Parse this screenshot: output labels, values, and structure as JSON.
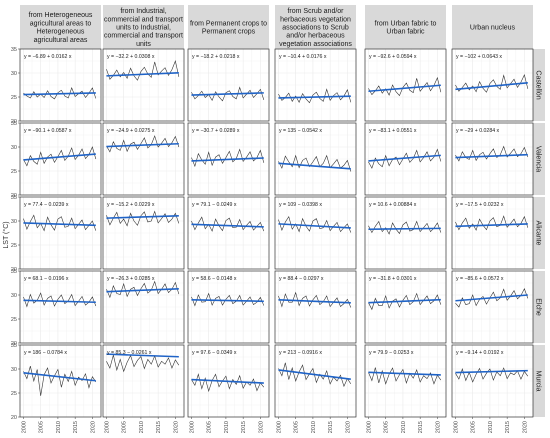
{
  "chart_data": {
    "type": "line",
    "ylabel": "LST (°C)",
    "xlabel": "",
    "ylim": [
      20,
      35
    ],
    "xlim": [
      1999,
      2022.5
    ],
    "y_ticks": [
      20,
      25,
      30,
      35
    ],
    "x_ticks": [
      2000,
      2005,
      2010,
      2015,
      2020
    ],
    "grid": true,
    "columns": [
      "from Heterogeneous agricultural areas to Heterogeneous agricultural areas",
      "from Industrial, commercial and transport units to Industrial, commercial and transport units",
      "from Permanent crops to Permanent crops",
      "from Scrub and/or herbaceous vegetation associations to Scrub and/or herbaceous vegetation associations",
      "from Urban fabric to Urban fabric",
      "Urban nucleus"
    ],
    "column_header_lines": [
      [
        "from Heterogeneous",
        "agricultural areas to",
        "Heterogeneous",
        "agricultural areas"
      ],
      [
        "from Industrial,",
        "commercial and transport",
        "units to Industrial,",
        "commercial and transport",
        "units"
      ],
      [
        "from Permanent crops to",
        "Permanent crops"
      ],
      [
        "from Scrub and/or",
        "herbaceous vegetation",
        "associations to Scrub",
        "and/or herbaceous",
        "vegetation associations"
      ],
      [
        "from Urban fabric to",
        "Urban fabric"
      ],
      [
        "Urban nucleus"
      ]
    ],
    "rows": [
      "Castellón",
      "Valencia",
      "Alicante",
      "Elche",
      "Murcia"
    ],
    "years": [
      2000,
      2001,
      2002,
      2003,
      2004,
      2005,
      2006,
      2007,
      2008,
      2009,
      2010,
      2011,
      2012,
      2013,
      2014,
      2015,
      2016,
      2017,
      2018,
      2019,
      2020,
      2021
    ],
    "panels": [
      [
        {
          "equation": "y = −6.89 + 0.0162 x",
          "intercept": -6.89,
          "slope": 0.0162,
          "values": [
            25.8,
            25.2,
            24.8,
            26.1,
            25.0,
            25.6,
            24.9,
            26.3,
            25.1,
            24.6,
            25.9,
            26.4,
            25.2,
            24.8,
            26.9,
            25.1,
            25.7,
            26.2,
            24.9,
            25.8,
            26.9,
            24.7
          ]
        },
        {
          "equation": "y = −32.2 + 0.0308 x",
          "intercept": -32.2,
          "slope": 0.0308,
          "values": [
            30.8,
            28.7,
            29.5,
            30.6,
            29.2,
            30.1,
            28.9,
            31.0,
            29.4,
            28.5,
            30.3,
            31.2,
            29.8,
            29.1,
            32.3,
            29.6,
            30.4,
            31.1,
            29.5,
            30.7,
            32.5,
            29.2
          ]
        },
        {
          "equation": "y = −18.2 + 0.0218 x",
          "intercept": -18.2,
          "slope": 0.0218,
          "values": [
            26.0,
            24.6,
            25.3,
            26.2,
            24.9,
            25.5,
            24.3,
            26.1,
            25.0,
            24.2,
            25.9,
            26.3,
            25.1,
            24.6,
            27.0,
            24.8,
            25.6,
            26.4,
            24.9,
            25.7,
            26.6,
            24.4
          ]
        },
        {
          "equation": "y = −10.4 + 0.0176 x",
          "intercept": -10.4,
          "slope": 0.0176,
          "values": [
            25.6,
            24.3,
            24.9,
            25.8,
            24.1,
            25.2,
            23.9,
            25.7,
            24.6,
            23.8,
            25.4,
            26.0,
            24.7,
            24.1,
            26.6,
            24.3,
            25.3,
            25.9,
            24.4,
            25.2,
            26.5,
            23.9
          ]
        },
        {
          "equation": "y = −92.6 + 0.0594 x",
          "intercept": -92.6,
          "slope": 0.0594,
          "values": [
            26.8,
            25.5,
            26.3,
            27.3,
            25.8,
            26.7,
            25.4,
            27.5,
            26.1,
            25.3,
            27.0,
            27.9,
            26.4,
            25.9,
            28.9,
            26.2,
            27.1,
            28.0,
            26.3,
            27.4,
            29.0,
            26.0
          ]
        },
        {
          "equation": "y = −102 + 0.0643 x",
          "intercept": -102,
          "slope": 0.0643,
          "values": [
            27.5,
            26.2,
            27.0,
            27.9,
            26.5,
            27.3,
            26.1,
            28.2,
            26.8,
            26.0,
            27.8,
            28.6,
            27.2,
            26.6,
            29.5,
            26.9,
            27.8,
            28.7,
            27.0,
            28.1,
            29.6,
            26.7
          ]
        }
      ],
      [
        {
          "equation": "y = −90.1 + 0.0587 x",
          "intercept": -90.1,
          "slope": 0.0587,
          "values": [
            27.4,
            26.1,
            28.2,
            27.0,
            26.4,
            28.9,
            26.6,
            27.9,
            28.5,
            26.8,
            28.0,
            29.3,
            27.2,
            28.1,
            29.8,
            27.4,
            28.3,
            29.6,
            27.6,
            28.4,
            30.0,
            27.5
          ]
        },
        {
          "equation": "y = −24.9 + 0.0275 x",
          "intercept": -24.9,
          "slope": 0.0275,
          "values": [
            30.2,
            29.0,
            31.1,
            29.7,
            29.3,
            31.4,
            29.1,
            30.6,
            31.0,
            29.5,
            30.7,
            31.9,
            29.8,
            30.5,
            32.3,
            30.0,
            30.8,
            31.8,
            30.1,
            30.9,
            32.2,
            30.0
          ]
        },
        {
          "equation": "y = −30.7 + 0.0289 x",
          "intercept": -30.7,
          "slope": 0.0289,
          "values": [
            27.8,
            26.0,
            28.6,
            27.3,
            26.4,
            28.9,
            26.2,
            27.9,
            28.4,
            26.6,
            27.8,
            29.1,
            26.9,
            27.6,
            29.5,
            27.0,
            27.9,
            29.0,
            27.1,
            27.8,
            29.3,
            26.7
          ]
        },
        {
          "equation": "y = 135 − 0.0542 x",
          "intercept": 135,
          "slope": -0.0542,
          "values": [
            27.0,
            25.6,
            28.1,
            26.9,
            25.9,
            28.2,
            25.7,
            27.2,
            27.7,
            25.9,
            26.9,
            28.0,
            25.9,
            26.6,
            28.2,
            25.7,
            26.5,
            27.4,
            25.6,
            26.2,
            27.2,
            24.9
          ]
        },
        {
          "equation": "y = −83.1 + 0.0551 x",
          "intercept": -83.1,
          "slope": 0.0551,
          "values": [
            26.9,
            25.6,
            27.7,
            26.5,
            25.9,
            28.2,
            26.1,
            27.4,
            27.9,
            26.3,
            27.5,
            28.7,
            26.8,
            27.6,
            29.3,
            26.9,
            27.8,
            29.0,
            27.1,
            27.9,
            29.5,
            27.0
          ]
        },
        {
          "equation": "y = −29 + 0.0284 x",
          "intercept": -29,
          "slope": 0.0284,
          "values": [
            28.3,
            27.1,
            29.0,
            27.8,
            27.4,
            29.3,
            27.2,
            28.4,
            28.9,
            27.5,
            28.6,
            29.6,
            27.8,
            28.4,
            30.1,
            27.9,
            28.7,
            29.6,
            28.0,
            28.6,
            29.9,
            27.9
          ]
        }
      ],
      [
        {
          "equation": "y = 77.4 − 0.0239 x",
          "intercept": 77.4,
          "slope": -0.0239,
          "values": [
            30.5,
            28.3,
            29.9,
            31.2,
            28.6,
            29.5,
            28.0,
            30.8,
            29.2,
            28.1,
            30.4,
            30.9,
            28.7,
            28.9,
            30.6,
            28.4,
            29.3,
            30.2,
            28.2,
            29.1,
            30.0,
            28.0
          ]
        },
        {
          "equation": "y = −15.2 + 0.0229 x",
          "intercept": -15.2,
          "slope": 0.0229,
          "values": [
            31.2,
            29.2,
            30.6,
            31.8,
            29.5,
            30.4,
            29.0,
            31.6,
            30.0,
            29.1,
            31.1,
            31.9,
            29.8,
            30.0,
            32.0,
            29.6,
            30.5,
            31.5,
            29.7,
            30.4,
            31.6,
            29.5
          ]
        },
        {
          "equation": "y = 79.1 − 0.0249 x",
          "intercept": 79.1,
          "slope": -0.0249,
          "values": [
            30.0,
            28.2,
            29.6,
            30.8,
            28.4,
            29.3,
            27.9,
            30.4,
            29.0,
            28.0,
            30.1,
            30.6,
            28.6,
            28.7,
            30.3,
            28.2,
            29.1,
            29.9,
            28.1,
            28.9,
            29.7,
            27.9
          ]
        },
        {
          "equation": "y = 109 − 0.0398 x",
          "intercept": 109,
          "slope": -0.0398,
          "values": [
            30.3,
            28.1,
            29.8,
            30.9,
            28.3,
            29.4,
            27.8,
            30.5,
            28.9,
            27.9,
            30.0,
            30.5,
            28.4,
            28.6,
            30.1,
            28.0,
            28.9,
            29.7,
            27.8,
            28.6,
            29.4,
            27.6
          ]
        },
        {
          "equation": "y = 10.6 + 0.00884 x",
          "intercept": 10.6,
          "slope": 0.00884,
          "values": [
            29.0,
            27.6,
            28.9,
            29.9,
            27.8,
            28.6,
            27.3,
            29.6,
            28.3,
            27.4,
            29.2,
            29.8,
            27.9,
            28.2,
            29.9,
            27.8,
            28.6,
            29.5,
            27.8,
            28.5,
            29.6,
            27.6
          ]
        },
        {
          "equation": "y = −17.5 + 0.0232 x",
          "intercept": -17.5,
          "slope": 0.0232,
          "values": [
            29.8,
            28.2,
            29.6,
            30.6,
            28.5,
            29.4,
            28.1,
            30.4,
            29.1,
            28.2,
            30.0,
            30.7,
            28.8,
            29.1,
            31.0,
            28.7,
            29.5,
            30.4,
            28.8,
            29.5,
            30.9,
            28.6
          ]
        }
      ],
      [
        {
          "equation": "y = 68.1 − 0.0196 x",
          "intercept": 68.1,
          "slope": -0.0196,
          "values": [
            29.6,
            27.6,
            30.1,
            28.3,
            28.9,
            30.4,
            27.9,
            29.3,
            29.8,
            27.7,
            29.1,
            30.0,
            28.2,
            28.8,
            30.1,
            27.8,
            28.7,
            29.7,
            27.9,
            28.5,
            29.6,
            27.7
          ]
        },
        {
          "equation": "y = −26.3 + 0.0285 x",
          "intercept": -26.3,
          "slope": 0.0285,
          "values": [
            31.2,
            29.5,
            31.9,
            30.3,
            30.1,
            32.3,
            29.7,
            31.2,
            31.6,
            29.9,
            31.3,
            32.4,
            30.4,
            31.0,
            32.8,
            30.3,
            31.2,
            32.3,
            30.5,
            31.2,
            32.6,
            30.2
          ]
        },
        {
          "equation": "y = 58.6 − 0.0148 x",
          "intercept": 58.6,
          "slope": -0.0148,
          "values": [
            29.6,
            27.8,
            30.0,
            28.5,
            28.6,
            30.3,
            27.9,
            29.3,
            29.7,
            27.9,
            29.1,
            29.9,
            28.2,
            28.7,
            29.9,
            27.9,
            28.7,
            29.6,
            28.0,
            28.5,
            29.5,
            27.8
          ]
        },
        {
          "equation": "y = 88.4 − 0.0297 x",
          "intercept": 88.4,
          "slope": -0.0297,
          "values": [
            29.8,
            27.6,
            30.2,
            28.5,
            28.5,
            30.5,
            27.8,
            29.3,
            29.8,
            27.7,
            29.0,
            29.9,
            28.0,
            28.6,
            29.8,
            27.6,
            28.5,
            29.4,
            27.6,
            28.2,
            29.1,
            27.4
          ]
        },
        {
          "equation": "y = −31.8 + 0.0301 x",
          "intercept": -31.8,
          "slope": 0.0301,
          "values": [
            28.4,
            27.0,
            29.3,
            27.8,
            27.8,
            29.8,
            27.3,
            28.7,
            29.2,
            27.5,
            28.9,
            29.9,
            28.0,
            28.6,
            30.3,
            28.0,
            28.9,
            29.8,
            28.2,
            28.8,
            30.0,
            28.0
          ]
        },
        {
          "equation": "y = −85.6 + 0.0572 x",
          "intercept": -85.6,
          "slope": 0.0572,
          "values": [
            28.3,
            27.5,
            29.4,
            28.0,
            28.2,
            30.0,
            27.8,
            29.1,
            29.7,
            28.1,
            29.4,
            30.6,
            28.8,
            29.4,
            31.2,
            28.9,
            29.8,
            30.9,
            29.2,
            29.9,
            31.3,
            29.3
          ]
        }
      ],
      [
        {
          "equation": "y = 186 − 0.0784 x",
          "intercept": 186,
          "slope": -0.0784,
          "values": [
            29.5,
            28.0,
            30.6,
            27.5,
            29.9,
            24.4,
            28.8,
            30.2,
            27.1,
            28.6,
            29.9,
            26.2,
            28.9,
            27.4,
            29.5,
            26.6,
            28.3,
            27.6,
            29.0,
            26.1,
            28.4,
            27.3
          ]
        },
        {
          "equation": "y = 85.3 − 0.0261 x",
          "intercept": 85.3,
          "slope": -0.0261,
          "values": [
            31.6,
            30.2,
            32.9,
            29.8,
            32.0,
            29.5,
            31.4,
            32.8,
            30.5,
            31.8,
            32.6,
            30.1,
            32.0,
            31.0,
            32.7,
            30.4,
            31.6,
            31.0,
            32.3,
            30.2,
            31.9,
            30.8
          ]
        },
        {
          "equation": "y = 97.6 − 0.0349 x",
          "intercept": 97.6,
          "slope": -0.0349,
          "values": [
            27.8,
            26.6,
            28.9,
            25.9,
            28.1,
            25.4,
            27.6,
            28.9,
            26.3,
            27.5,
            28.5,
            25.9,
            27.8,
            26.8,
            28.6,
            26.0,
            27.3,
            26.6,
            27.9,
            25.5,
            27.1,
            26.2
          ]
        },
        {
          "equation": "y = 213 − 0.0916 x",
          "intercept": 213,
          "slope": -0.0916,
          "values": [
            30.1,
            28.6,
            31.3,
            27.8,
            30.2,
            27.5,
            29.4,
            30.8,
            27.8,
            29.0,
            30.1,
            27.2,
            28.9,
            27.9,
            29.6,
            26.9,
            28.3,
            27.5,
            28.7,
            26.4,
            28.0,
            26.9
          ]
        },
        {
          "equation": "y = 79.9 − 0.0253 x",
          "intercept": 79.9,
          "slope": -0.0253,
          "values": [
            29.3,
            27.6,
            30.3,
            27.1,
            29.6,
            26.9,
            28.9,
            30.2,
            27.5,
            28.8,
            29.9,
            27.1,
            29.1,
            28.1,
            29.8,
            27.3,
            28.6,
            28.0,
            29.2,
            26.9,
            28.7,
            27.7
          ]
        },
        {
          "equation": "y = −9.14 + 0.0192 x",
          "intercept": -9.14,
          "slope": 0.0192,
          "values": [
            29.1,
            27.9,
            30.0,
            27.6,
            29.3,
            27.3,
            28.9,
            30.1,
            27.9,
            29.1,
            30.0,
            27.7,
            29.4,
            28.6,
            30.2,
            28.0,
            29.2,
            28.8,
            29.6,
            27.9,
            29.5,
            28.5
          ]
        }
      ]
    ],
    "colors": {
      "data_line": "#333333",
      "trend_line": "#1f63c7",
      "header_fill": "#d9d9d9",
      "strip_fill": "#d9d9d9",
      "grid": "#ebebeb",
      "panel_border": "#333333"
    }
  }
}
